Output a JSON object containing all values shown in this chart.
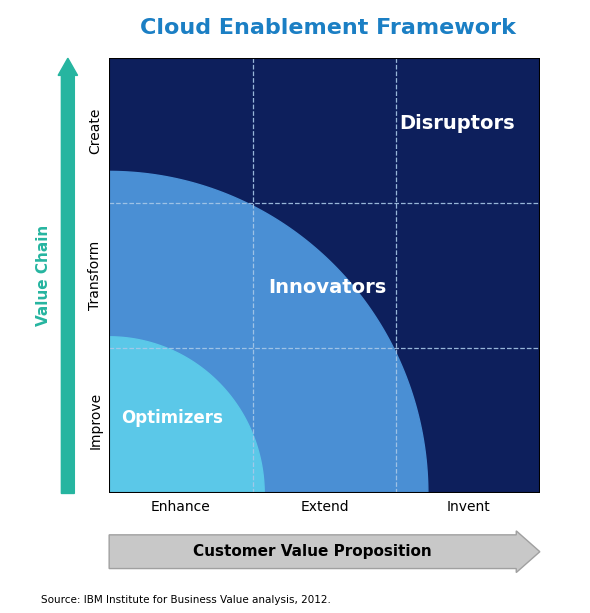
{
  "title": "Cloud Enablement Framework",
  "title_color": "#1b7fc4",
  "title_fontsize": 16,
  "background_color": "#ffffff",
  "source_text": "Source: IBM Institute for Business Value analysis, 2012.",
  "x_axis_label": "Customer Value Proposition",
  "y_axis_label": "Value Chain",
  "x_ticks": [
    "Enhance",
    "Extend",
    "Invent"
  ],
  "y_ticks": [
    "Improve",
    "Transform",
    "Create"
  ],
  "color_dark_navy": "#0d1f5c",
  "color_medium_blue": "#4a8fd4",
  "color_light_blue": "#5bc8e8",
  "arrow_color_y": "#26b5a0",
  "arrow_color_x": "#c8c8c8",
  "label_disruptors": "Disruptors",
  "label_innovators": "Innovators",
  "label_optimizers": "Optimizers",
  "r_large": 2.22,
  "r_small": 1.08
}
